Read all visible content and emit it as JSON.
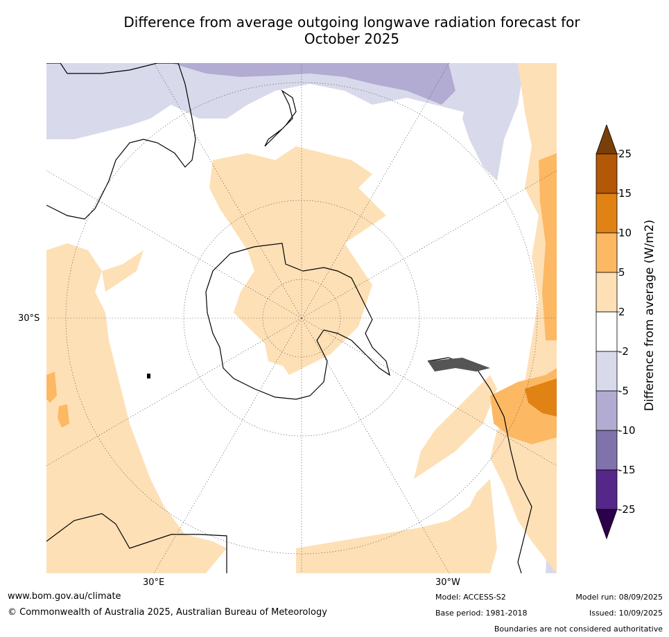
{
  "title_line1": "Difference from average outgoing longwave radiation forecast for",
  "title_line2": "October 2025",
  "map_labels": {
    "lat": "30°S",
    "lon_east": "30°E",
    "lon_west": "30°W"
  },
  "colorbar": {
    "title": "Difference from average (W/m2)",
    "ticks": [
      "25",
      "15",
      "10",
      "5",
      "2",
      "-2",
      "-5",
      "-10",
      "-15",
      "-25"
    ],
    "colors": [
      "#7a3e0a",
      "#b35806",
      "#e08214",
      "#fdb863",
      "#fee0b6",
      "#ffffff",
      "#d8daeb",
      "#b2abd2",
      "#8073ac",
      "#542788",
      "#2d004b"
    ]
  },
  "footer": {
    "website": "www.bom.gov.au/climate",
    "copyright": "© Commonwealth of Australia 2025, Australian Bureau of Meteorology",
    "model": "Model: ACCESS-S2",
    "base_period": "Base period: 1981-2018",
    "model_run": "Model run: 08/09/2025",
    "issued": "Issued: 10/09/2025",
    "disclaimer": "Boundaries are not considered authoritative"
  }
}
